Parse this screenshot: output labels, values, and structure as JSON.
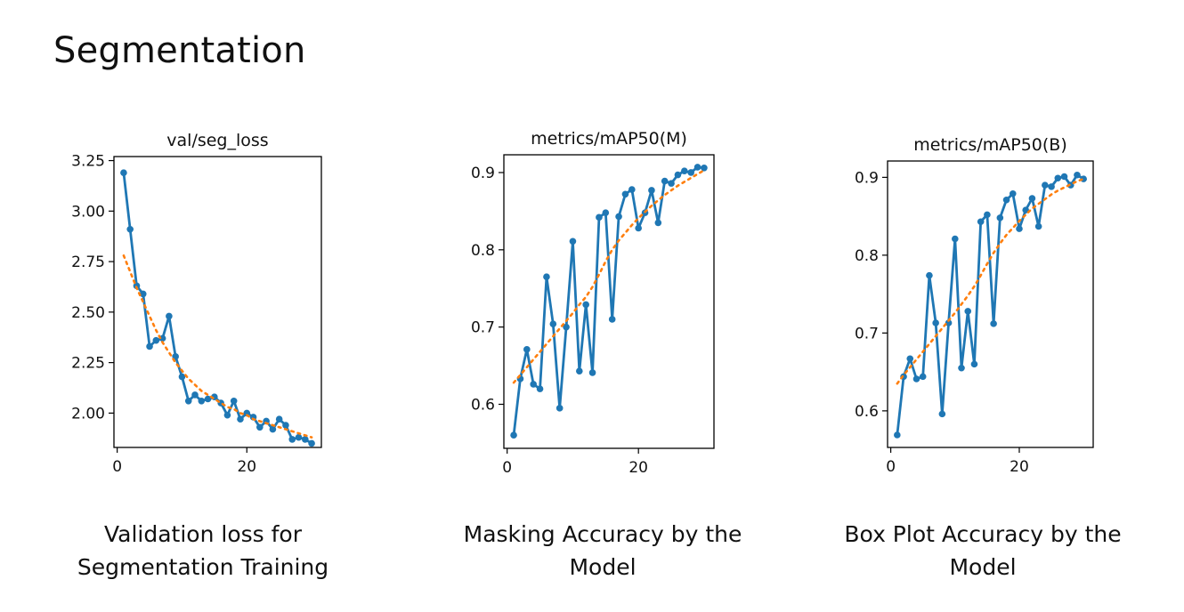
{
  "page": {
    "title": "Segmentation"
  },
  "chart_data": [
    {
      "type": "line",
      "title": "val/seg_loss",
      "xlabel": "",
      "ylabel": "",
      "xlim": [
        -0.5,
        31.5
      ],
      "ylim": [
        1.83,
        3.27
      ],
      "x_ticks": [
        0,
        20
      ],
      "y_ticks": [
        2.0,
        2.25,
        2.5,
        2.75,
        3.0,
        3.25
      ],
      "y_tick_labels": [
        "2.00",
        "2.25",
        "2.50",
        "2.75",
        "3.00",
        "3.25"
      ],
      "grid": false,
      "series": [
        {
          "style": "solid-markers",
          "color": "#1f77b4",
          "x": [
            1,
            2,
            3,
            4,
            5,
            6,
            7,
            8,
            9,
            10,
            11,
            12,
            13,
            14,
            15,
            16,
            17,
            18,
            19,
            20,
            21,
            22,
            23,
            24,
            25,
            26,
            27,
            28,
            29,
            30
          ],
          "y": [
            3.19,
            2.91,
            2.63,
            2.59,
            2.33,
            2.36,
            2.37,
            2.48,
            2.28,
            2.18,
            2.06,
            2.09,
            2.06,
            2.07,
            2.08,
            2.05,
            1.99,
            2.06,
            1.97,
            2.0,
            1.98,
            1.93,
            1.96,
            1.92,
            1.97,
            1.94,
            1.87,
            1.88,
            1.87,
            1.85
          ]
        },
        {
          "style": "dotted-trend",
          "color": "#ff7f0e",
          "x": [
            1,
            2,
            3,
            4,
            5,
            6,
            7,
            8,
            9,
            10,
            11,
            12,
            13,
            14,
            15,
            16,
            17,
            18,
            19,
            20,
            21,
            22,
            23,
            24,
            25,
            26,
            27,
            28,
            29,
            30
          ],
          "y": [
            2.78,
            2.7,
            2.62,
            2.55,
            2.48,
            2.41,
            2.35,
            2.3,
            2.25,
            2.21,
            2.17,
            2.14,
            2.11,
            2.09,
            2.07,
            2.05,
            2.03,
            2.02,
            2.0,
            1.99,
            1.97,
            1.96,
            1.95,
            1.94,
            1.93,
            1.92,
            1.91,
            1.9,
            1.89,
            1.88
          ]
        }
      ],
      "caption": [
        "Validation loss for",
        "Segmentation Training"
      ]
    },
    {
      "type": "line",
      "title": "metrics/mAP50(M)",
      "xlabel": "",
      "ylabel": "",
      "xlim": [
        -0.5,
        31.5
      ],
      "ylim": [
        0.543,
        0.923
      ],
      "x_ticks": [
        0,
        20
      ],
      "y_ticks": [
        0.6,
        0.7,
        0.8,
        0.9
      ],
      "y_tick_labels": [
        "0.6",
        "0.7",
        "0.8",
        "0.9"
      ],
      "grid": false,
      "series": [
        {
          "style": "solid-markers",
          "color": "#1f77b4",
          "x": [
            1,
            2,
            3,
            4,
            5,
            6,
            7,
            8,
            9,
            10,
            11,
            12,
            13,
            14,
            15,
            16,
            17,
            18,
            19,
            20,
            21,
            22,
            23,
            24,
            25,
            26,
            27,
            28,
            29,
            30
          ],
          "y": [
            0.56,
            0.633,
            0.671,
            0.626,
            0.62,
            0.765,
            0.704,
            0.595,
            0.7,
            0.811,
            0.643,
            0.729,
            0.641,
            0.842,
            0.848,
            0.71,
            0.843,
            0.872,
            0.878,
            0.828,
            0.848,
            0.877,
            0.835,
            0.889,
            0.886,
            0.897,
            0.902,
            0.9,
            0.907,
            0.906
          ]
        },
        {
          "style": "dotted-trend",
          "color": "#ff7f0e",
          "x": [
            1,
            2,
            3,
            4,
            5,
            6,
            7,
            8,
            9,
            10,
            11,
            12,
            13,
            14,
            15,
            16,
            17,
            18,
            19,
            20,
            21,
            22,
            23,
            24,
            25,
            26,
            27,
            28,
            29,
            30
          ],
          "y": [
            0.628,
            0.638,
            0.648,
            0.658,
            0.668,
            0.678,
            0.688,
            0.698,
            0.708,
            0.718,
            0.729,
            0.739,
            0.752,
            0.768,
            0.785,
            0.8,
            0.812,
            0.822,
            0.832,
            0.841,
            0.849,
            0.857,
            0.864,
            0.871,
            0.877,
            0.883,
            0.888,
            0.893,
            0.898,
            0.903
          ]
        }
      ],
      "caption": [
        "Masking Accuracy by the",
        "Model"
      ]
    },
    {
      "type": "line",
      "title": "metrics/mAP50(B)",
      "xlabel": "",
      "ylabel": "",
      "xlim": [
        -0.5,
        31.5
      ],
      "ylim": [
        0.553,
        0.921
      ],
      "x_ticks": [
        0,
        20
      ],
      "y_ticks": [
        0.6,
        0.7,
        0.8,
        0.9
      ],
      "y_tick_labels": [
        "0.6",
        "0.7",
        "0.8",
        "0.9"
      ],
      "grid": false,
      "series": [
        {
          "style": "solid-markers",
          "color": "#1f77b4",
          "x": [
            1,
            2,
            3,
            4,
            5,
            6,
            7,
            8,
            9,
            10,
            11,
            12,
            13,
            14,
            15,
            16,
            17,
            18,
            19,
            20,
            21,
            22,
            23,
            24,
            25,
            26,
            27,
            28,
            29,
            30
          ],
          "y": [
            0.569,
            0.644,
            0.667,
            0.641,
            0.644,
            0.774,
            0.713,
            0.596,
            0.713,
            0.821,
            0.655,
            0.728,
            0.66,
            0.843,
            0.852,
            0.712,
            0.848,
            0.871,
            0.879,
            0.834,
            0.858,
            0.873,
            0.837,
            0.89,
            0.888,
            0.899,
            0.901,
            0.89,
            0.903,
            0.898
          ]
        },
        {
          "style": "dotted-trend",
          "color": "#ff7f0e",
          "x": [
            1,
            2,
            3,
            4,
            5,
            6,
            7,
            8,
            9,
            10,
            11,
            12,
            13,
            14,
            15,
            16,
            17,
            18,
            19,
            20,
            21,
            22,
            23,
            24,
            25,
            26,
            27,
            28,
            29,
            30
          ],
          "y": [
            0.635,
            0.646,
            0.656,
            0.666,
            0.676,
            0.686,
            0.696,
            0.706,
            0.716,
            0.726,
            0.737,
            0.748,
            0.76,
            0.774,
            0.789,
            0.803,
            0.815,
            0.826,
            0.835,
            0.844,
            0.852,
            0.86,
            0.866,
            0.872,
            0.878,
            0.883,
            0.887,
            0.891,
            0.895,
            0.898
          ]
        }
      ],
      "caption": [
        "Box Plot Accuracy by the",
        "Model"
      ]
    }
  ]
}
